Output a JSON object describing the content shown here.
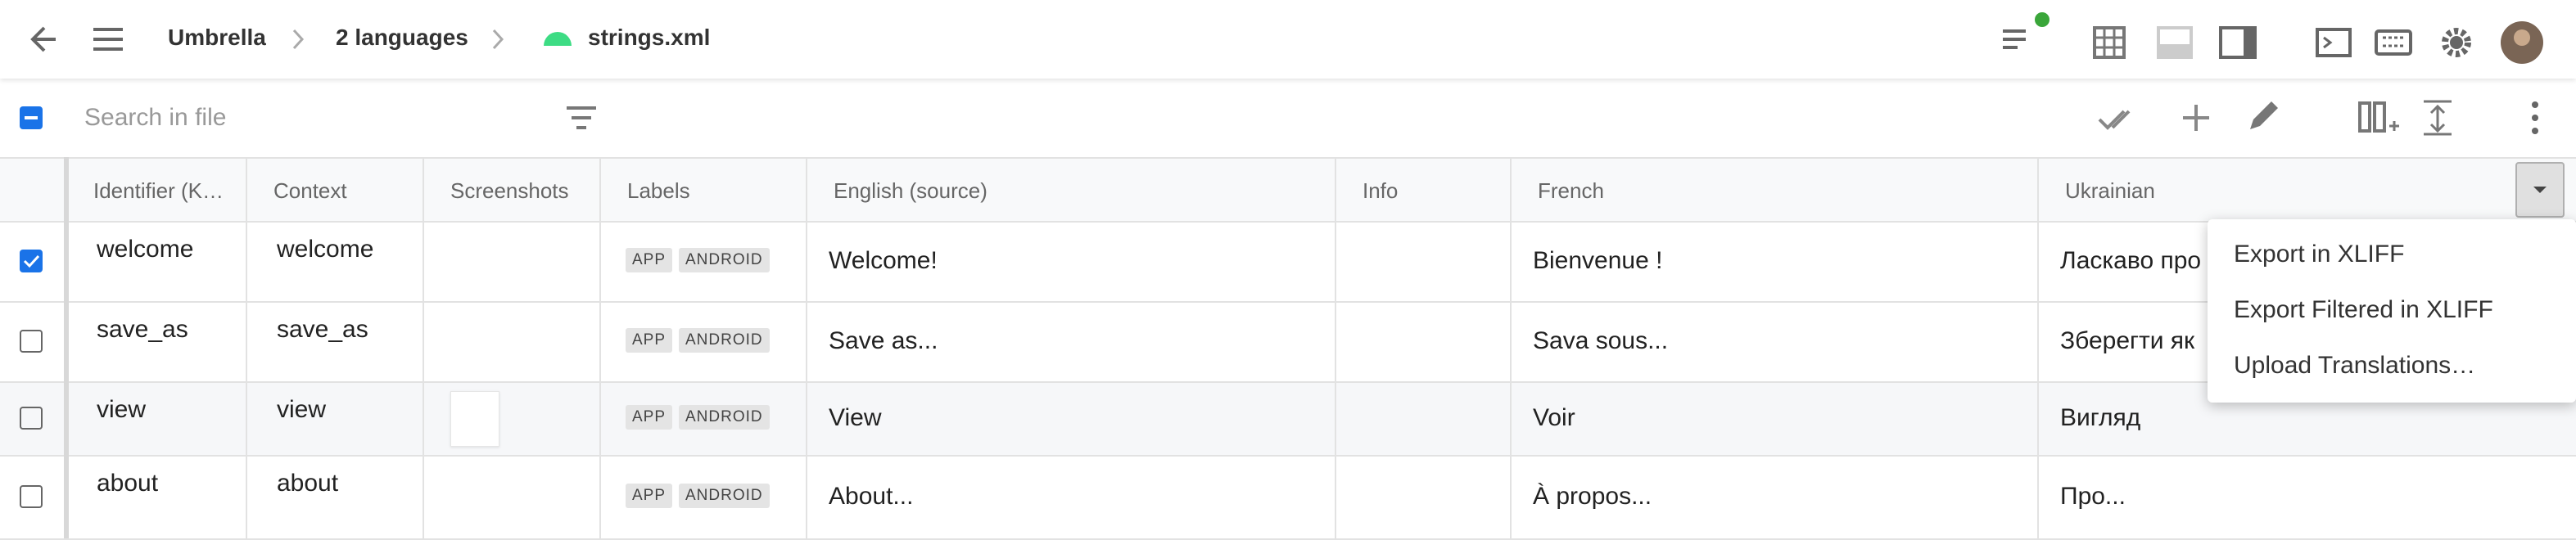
{
  "header": {
    "breadcrumbs": [
      "Umbrella",
      "2 languages",
      "strings.xml"
    ]
  },
  "toolbar": {
    "search_placeholder": "Search in file"
  },
  "table": {
    "columns": [
      "Identifier (K…",
      "Context",
      "Screenshots",
      "Labels",
      "English (source)",
      "Info",
      "French",
      "Ukrainian"
    ],
    "rows": [
      {
        "identifier": "welcome",
        "context": "welcome",
        "labels": [
          "APP",
          "ANDROID"
        ],
        "english": "Welcome!",
        "french": "Bienvenue !",
        "ukrainian": "Ласкаво про",
        "selected": true,
        "screenshot": false
      },
      {
        "identifier": "save_as",
        "context": "save_as",
        "labels": [
          "APP",
          "ANDROID"
        ],
        "english": "Save as...",
        "french": "Sava sous...",
        "ukrainian": "Зберегти як",
        "selected": false,
        "screenshot": false
      },
      {
        "identifier": "view",
        "context": "view",
        "labels": [
          "APP",
          "ANDROID"
        ],
        "english": "View",
        "french": "Voir",
        "ukrainian": "Вигляд",
        "selected": false,
        "screenshot": true
      },
      {
        "identifier": "about",
        "context": "about",
        "labels": [
          "APP",
          "ANDROID"
        ],
        "english": "About...",
        "french": "À propos...",
        "ukrainian": "Про...",
        "selected": false,
        "screenshot": false
      }
    ]
  },
  "menu": {
    "items": [
      "Export in XLIFF",
      "Export Filtered in XLIFF",
      "Upload Translations…"
    ]
  }
}
